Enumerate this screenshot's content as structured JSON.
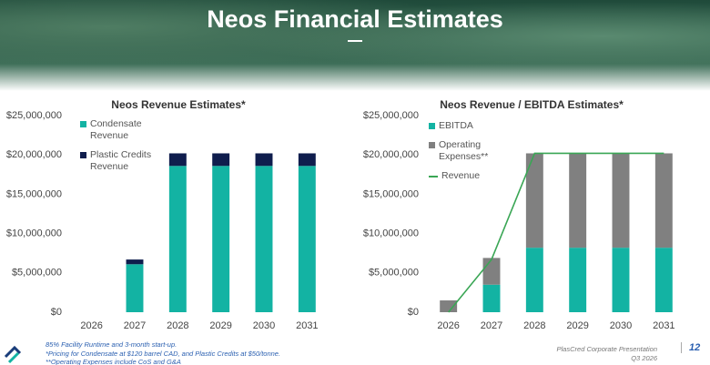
{
  "header": {
    "title": "Neos Financial Estimates"
  },
  "chart_data": [
    {
      "type": "bar",
      "stacked": true,
      "title": "Neos Revenue Estimates*",
      "categories": [
        "2026",
        "2027",
        "2028",
        "2029",
        "2030",
        "2031"
      ],
      "series": [
        {
          "name": "Condensate Revenue",
          "color": "#13b3a3",
          "values": [
            0,
            6100000,
            18600000,
            18600000,
            18600000,
            18600000
          ]
        },
        {
          "name": "Plastic Credits Revenue",
          "color": "#0f1d4d",
          "values": [
            0,
            600000,
            1600000,
            1600000,
            1600000,
            1600000
          ]
        }
      ],
      "ylim": [
        0,
        25000000
      ],
      "yticks": [
        {
          "value": 0,
          "label": "$0"
        },
        {
          "value": 5000000,
          "label": "$5,000,000"
        },
        {
          "value": 10000000,
          "label": "$10,000,000"
        },
        {
          "value": 15000000,
          "label": "$15,000,000"
        },
        {
          "value": 20000000,
          "label": "$20,000,000"
        },
        {
          "value": 25000000,
          "label": "$25,000,000"
        }
      ],
      "grid": false,
      "legend": "upper left"
    },
    {
      "type": "bar",
      "stacked": true,
      "title": "Neos Revenue / EBITDA Estimates*",
      "categories": [
        "2026",
        "2027",
        "2028",
        "2029",
        "2030",
        "2031"
      ],
      "series": [
        {
          "name": "EBITDA",
          "color": "#13b3a3",
          "values": [
            0,
            3500000,
            8200000,
            8200000,
            8200000,
            8200000
          ]
        },
        {
          "name": "Operating Expenses**",
          "color": "#808080",
          "values": [
            1500000,
            3400000,
            12000000,
            12000000,
            12000000,
            12000000
          ]
        },
        {
          "name": "Revenue",
          "color": "#3aa655",
          "type": "line",
          "values": [
            0,
            6700000,
            20200000,
            20200000,
            20200000,
            20200000
          ]
        }
      ],
      "ylim": [
        0,
        25000000
      ],
      "yticks": [
        {
          "value": 0,
          "label": "$0"
        },
        {
          "value": 5000000,
          "label": "$5,000,000"
        },
        {
          "value": 10000000,
          "label": "$10,000,000"
        },
        {
          "value": 15000000,
          "label": "$15,000,000"
        },
        {
          "value": 20000000,
          "label": "$20,000,000"
        },
        {
          "value": 25000000,
          "label": "$25,000,000"
        }
      ],
      "grid": false,
      "legend": "upper left"
    }
  ],
  "footnotes": [
    "85% Facility Runtime and 3-month start-up.",
    "*Pricing for Condensate at $120 barrel CAD, and Plastic Credits at $50/tonne.",
    "**Operating Expenses include CoS and G&A"
  ],
  "footer": {
    "company": "PlasCred Corporate Presentation",
    "date": "Q3 2026",
    "page": "12"
  }
}
